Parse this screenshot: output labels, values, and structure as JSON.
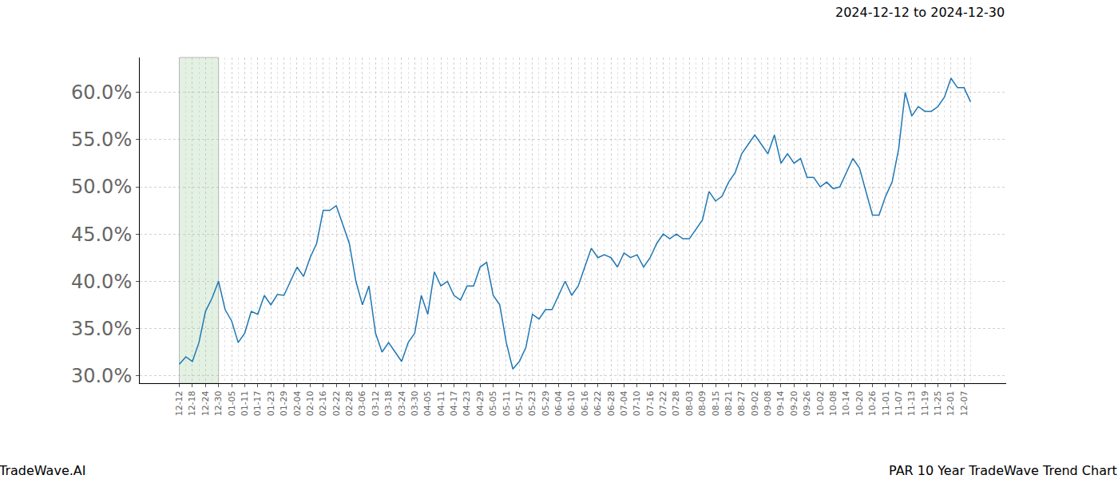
{
  "chart_data": {
    "type": "line",
    "title": "PAR 10 Year TradeWave Trend Chart",
    "subtitle": "2024-12-12 to 2024-12-30",
    "annotations": [
      "TradeWave.AI"
    ],
    "categories": [
      "12-12",
      null,
      "12-18",
      null,
      "12-24",
      null,
      "12-30",
      null,
      "01-05",
      null,
      "01-11",
      null,
      "01-17",
      null,
      "01-23",
      null,
      "01-29",
      null,
      "02-04",
      null,
      "02-10",
      null,
      "02-16",
      null,
      "02-22",
      null,
      "02-28",
      null,
      "03-06",
      null,
      "03-12",
      null,
      "03-18",
      null,
      "03-24",
      null,
      "03-30",
      null,
      "04-05",
      null,
      "04-11",
      null,
      "04-17",
      null,
      "04-23",
      null,
      "04-29",
      null,
      "05-05",
      null,
      "05-11",
      null,
      "05-17",
      null,
      "05-23",
      null,
      "05-29",
      null,
      "06-04",
      null,
      "06-10",
      null,
      "06-16",
      null,
      "06-22",
      null,
      "06-28",
      null,
      "07-04",
      null,
      "07-10",
      null,
      "07-16",
      null,
      "07-22",
      null,
      "07-28",
      null,
      "08-03",
      null,
      "08-09",
      null,
      "08-15",
      null,
      "08-21",
      null,
      "08-27",
      null,
      "09-02",
      null,
      "09-08",
      null,
      "09-14",
      null,
      "09-20",
      null,
      "09-26",
      null,
      "10-02",
      null,
      "10-08",
      null,
      "10-14",
      null,
      "10-20",
      null,
      "10-26",
      null,
      "11-01",
      null,
      "11-07",
      null,
      "11-13",
      null,
      "11-19",
      null,
      "11-25",
      null,
      "12-01",
      null,
      "12-07",
      null
    ],
    "values": [
      31.2,
      32.0,
      31.5,
      33.5,
      36.8,
      38.2,
      40.0,
      37.0,
      35.8,
      33.5,
      34.5,
      36.8,
      36.5,
      38.5,
      37.5,
      38.6,
      38.5,
      40.0,
      41.5,
      40.5,
      42.5,
      44.0,
      47.5,
      47.5,
      48.0,
      46.0,
      44.0,
      40.0,
      37.5,
      39.5,
      34.5,
      32.5,
      33.5,
      32.5,
      31.5,
      33.5,
      34.5,
      38.5,
      36.5,
      41.0,
      39.5,
      40.0,
      38.5,
      38.0,
      39.5,
      39.5,
      41.5,
      42.0,
      38.5,
      37.5,
      33.5,
      30.7,
      31.5,
      33.0,
      36.5,
      36.0,
      37.0,
      37.0,
      38.5,
      40.0,
      38.5,
      39.5,
      41.5,
      43.5,
      42.5,
      42.8,
      42.5,
      41.5,
      43.0,
      42.5,
      42.8,
      41.5,
      42.5,
      44.0,
      45.0,
      44.5,
      45.0,
      44.5,
      44.5,
      45.5,
      46.5,
      49.5,
      48.5,
      49.0,
      50.5,
      51.5,
      53.5,
      54.5,
      55.5,
      54.5,
      53.5,
      55.5,
      52.5,
      53.5,
      52.5,
      53.0,
      51.0,
      51.0,
      50.0,
      50.5,
      49.8,
      50.0,
      51.5,
      53.0,
      52.0,
      49.5,
      47.0,
      47.0,
      49.0,
      50.5,
      54.0,
      60.0,
      57.5,
      58.5,
      58.0,
      58.0,
      58.5,
      59.5,
      61.5,
      60.5,
      60.5,
      59.0
    ],
    "color": "#1f77b4",
    "shaded_range": {
      "start": "12-12",
      "end": "12-30",
      "color": "#e3f1e3"
    },
    "ylim": [
      29.2,
      63.7
    ],
    "yticks": [
      {
        "value": 30,
        "label": "30.0%"
      },
      {
        "value": 35,
        "label": "35.0%"
      },
      {
        "value": 40,
        "label": "40.0%"
      },
      {
        "value": 45,
        "label": "45.0%"
      },
      {
        "value": 50,
        "label": "50.0%"
      },
      {
        "value": 55,
        "label": "55.0%"
      },
      {
        "value": 60,
        "label": "60.0%"
      }
    ],
    "grid": true
  }
}
